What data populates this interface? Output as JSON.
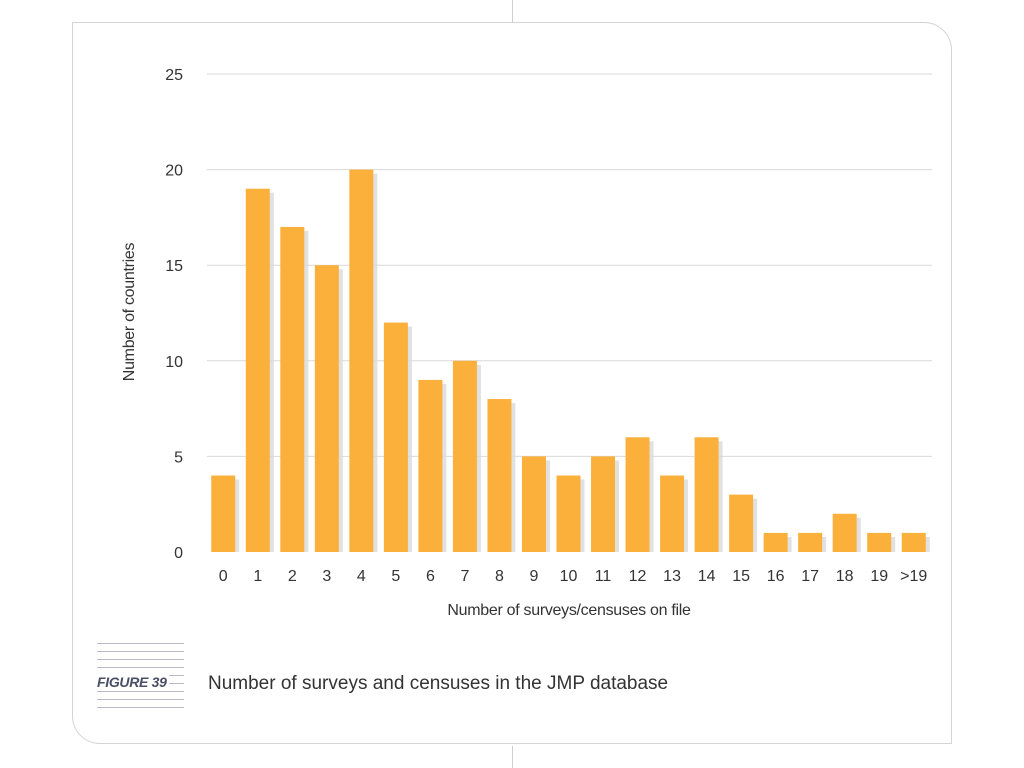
{
  "figure": {
    "tag": "FIGURE 39",
    "caption": "Number of surveys and censuses in the JMP database"
  },
  "colors": {
    "bar": "#FBB03B",
    "bar_shadow": "#d9d9d9",
    "grid": "#d9d9d9",
    "text": "#333333"
  },
  "chart_data": {
    "type": "bar",
    "xlabel": "Number of surveys/censuses on file",
    "ylabel": "Number of countries",
    "categories": [
      "0",
      "1",
      "2",
      "3",
      "4",
      "5",
      "6",
      "7",
      "8",
      "9",
      "10",
      "11",
      "12",
      "13",
      "14",
      "15",
      "16",
      "17",
      "18",
      "19",
      ">19"
    ],
    "values": [
      4,
      19,
      17,
      15,
      20,
      12,
      9,
      10,
      8,
      5,
      4,
      5,
      6,
      4,
      6,
      3,
      1,
      1,
      2,
      1,
      1
    ],
    "ylim": [
      0,
      25
    ],
    "yticks": [
      0,
      5,
      10,
      15,
      20,
      25
    ],
    "grid": true,
    "legend": "none"
  }
}
